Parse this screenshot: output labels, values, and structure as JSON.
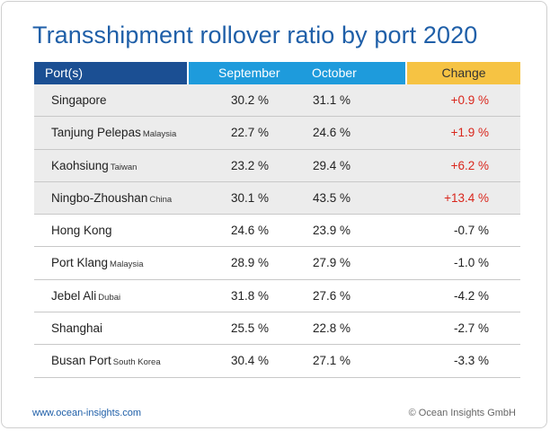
{
  "title": "Transshipment rollover ratio by port 2020",
  "footer": {
    "website": "www.ocean-insights.com",
    "copyright": "© Ocean Insights GmbH"
  },
  "colors": {
    "title": "#1f5fa8",
    "header_port": "#1b4f93",
    "header_months": "#1e9bdc",
    "header_change": "#f6c343",
    "positive_change": "#d9261c"
  },
  "chart_data": {
    "type": "table",
    "title": "Transshipment rollover ratio by port 2020",
    "columns": [
      "Port(s)",
      "September",
      "October",
      "Change"
    ],
    "rows": [
      {
        "port": "Singapore",
        "region": "",
        "september": "30.2 %",
        "october": "31.1 %",
        "change": "+0.9 %"
      },
      {
        "port": "Tanjung Pelepas",
        "region": "Malaysia",
        "september": "22.7 %",
        "october": "24.6 %",
        "change": "+1.9 %"
      },
      {
        "port": "Kaohsiung",
        "region": "Taiwan",
        "september": "23.2 %",
        "october": "29.4 %",
        "change": "+6.2 %"
      },
      {
        "port": "Ningbo-Zhoushan",
        "region": "China",
        "september": "30.1 %",
        "october": "43.5 %",
        "change": "+13.4 %"
      },
      {
        "port": "Hong Kong",
        "region": "",
        "september": "24.6 %",
        "october": "23.9 %",
        "change": "-0.7 %"
      },
      {
        "port": "Port Klang",
        "region": "Malaysia",
        "september": "28.9 %",
        "october": "27.9 %",
        "change": "-1.0 %"
      },
      {
        "port": "Jebel Ali",
        "region": "Dubai",
        "september": "31.8 %",
        "october": "27.6 %",
        "change": "-4.2 %"
      },
      {
        "port": "Shanghai",
        "region": "",
        "september": "25.5 %",
        "october": "22.8 %",
        "change": "-2.7 %"
      },
      {
        "port": "Busan Port",
        "region": "South Korea",
        "september": "30.4 %",
        "october": "27.1 %",
        "change": "-3.3 %"
      }
    ]
  }
}
